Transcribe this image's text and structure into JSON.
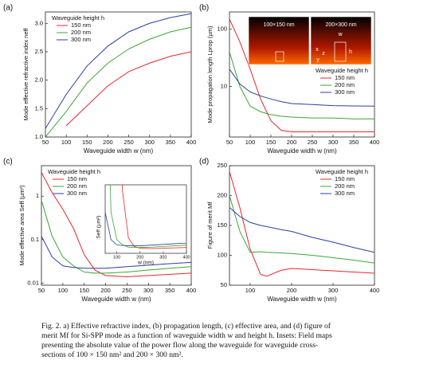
{
  "chart_data": [
    {
      "type": "line",
      "label": "(a)",
      "xlabel": "Waveguide width w (nm)",
      "ylabel": "Mode effective refractive index neff",
      "x": [
        50,
        100,
        150,
        200,
        250,
        300,
        350,
        400
      ],
      "series": [
        {
          "name": "150 nm",
          "color": "#e8262a",
          "values": [
            null,
            1.2,
            1.55,
            1.9,
            2.15,
            2.3,
            2.42,
            2.5
          ]
        },
        {
          "name": "200 nm",
          "color": "#3aa635",
          "values": [
            1.0,
            1.45,
            1.95,
            2.3,
            2.55,
            2.72,
            2.85,
            2.93
          ]
        },
        {
          "name": "300 nm",
          "color": "#2b3f9c",
          "values": [
            1.15,
            1.75,
            2.25,
            2.6,
            2.85,
            3.0,
            3.1,
            3.17
          ]
        }
      ],
      "legend_title": "Waveguide height h",
      "legend": "upper left",
      "xlim": [
        50,
        400
      ],
      "xticks": [
        50,
        100,
        150,
        200,
        250,
        300,
        350,
        400
      ],
      "ylim": [
        1.0,
        3.2
      ],
      "yticks": [
        {
          "value": 1,
          "label": "1.0"
        },
        {
          "value": 1.5,
          "label": "1.5"
        },
        {
          "value": 2,
          "label": "2.0"
        },
        {
          "value": 2.5,
          "label": "2.5"
        },
        {
          "value": 3,
          "label": "3.0"
        }
      ]
    },
    {
      "type": "line",
      "label": "(b)",
      "xlabel": "Waveguide width w (nm)",
      "ylabel": "Mode propagation length Lprop (µm)",
      "x": [
        50,
        75,
        100,
        125,
        150,
        175,
        200,
        250,
        300,
        350,
        400
      ],
      "series": [
        {
          "name": "150 nm",
          "color": "#e8262a",
          "values": [
            150,
            60,
            20,
            6,
            2.5,
            1.7,
            1.6,
            1.6,
            1.6,
            1.6,
            1.6
          ]
        },
        {
          "name": "200 nm",
          "color": "#3aa635",
          "values": [
            40,
            10,
            4.5,
            3.6,
            3.2,
            3.0,
            2.9,
            2.8,
            2.8,
            2.7,
            2.7
          ]
        },
        {
          "name": "300 nm",
          "color": "#2b3f9c",
          "values": [
            20,
            11,
            8,
            6.8,
            6,
            5.4,
            5,
            4.8,
            4.6,
            4.55,
            4.5
          ]
        }
      ],
      "legend_title": "Waveguide height h",
      "legend": "right",
      "annotations": [
        "100×150 nm",
        "200×300 nm",
        "w",
        "h",
        "x",
        "y",
        "z"
      ],
      "log_y": true,
      "xlim": [
        50,
        400
      ],
      "xticks": [
        50,
        100,
        150,
        200,
        250,
        300,
        350,
        400
      ],
      "ylim": [
        1.3,
        200
      ],
      "yticks": [
        10,
        100
      ]
    },
    {
      "type": "line",
      "label": "(c)",
      "xlabel": "Waveguide width w (nm)",
      "ylabel": "Mode effective area Seff (µm²)",
      "x": [
        50,
        75,
        100,
        125,
        150,
        175,
        200,
        250,
        300,
        350,
        400
      ],
      "series": [
        {
          "name": "150 nm",
          "color": "#e8262a",
          "values": [
            3.5,
            1.2,
            0.5,
            0.18,
            0.045,
            0.02,
            0.015,
            0.014,
            0.015,
            0.016,
            0.017
          ]
        },
        {
          "name": "200 nm",
          "color": "#3aa635",
          "values": [
            0.8,
            0.12,
            0.04,
            0.025,
            0.018,
            0.017,
            0.017,
            0.018,
            0.02,
            0.022,
            0.024
          ]
        },
        {
          "name": "300 nm",
          "color": "#2b3f9c",
          "values": [
            0.12,
            0.04,
            0.025,
            0.023,
            0.022,
            0.022,
            0.022,
            0.024,
            0.026,
            0.028,
            0.03
          ]
        }
      ],
      "legend_title": "Waveguide height h",
      "legend": "upper left",
      "log_y": true,
      "xlim": [
        50,
        400
      ],
      "xticks": [
        50,
        100,
        150,
        200,
        250,
        300,
        350,
        400
      ],
      "ylim": [
        0.009,
        5
      ],
      "yticks": [
        0.01,
        0.1,
        1
      ],
      "inset": {
        "xlabel": "w (nm)",
        "ylabel": "Seff (µm²)",
        "xlim": [
          50,
          400
        ],
        "xticks": [
          100,
          200,
          300,
          400
        ],
        "ylim": [
          0,
          0.2
        ]
      }
    },
    {
      "type": "line",
      "label": "(d)",
      "xlabel": "Waveguide width w (nm)",
      "ylabel": "Figure of merit Mf",
      "x": [
        50,
        75,
        100,
        125,
        140,
        175,
        200,
        250,
        300,
        350,
        400
      ],
      "series": [
        {
          "name": "150 nm",
          "color": "#e8262a",
          "values": [
            240,
            180,
            110,
            68,
            65,
            75,
            78,
            76,
            74,
            72,
            70
          ]
        },
        {
          "name": "200 nm",
          "color": "#3aa635",
          "values": [
            200,
            140,
            105,
            106,
            105,
            104,
            103,
            100,
            96,
            92,
            87
          ]
        },
        {
          "name": "300 nm",
          "color": "#2b3f9c",
          "values": [
            180,
            165,
            155,
            150,
            148,
            143,
            140,
            130,
            122,
            113,
            105
          ]
        }
      ],
      "legend_title": "Waveguide height h",
      "legend": "upper right",
      "xlim": [
        50,
        400
      ],
      "xticks": [
        100,
        200,
        300,
        400
      ],
      "ylim": [
        50,
        250
      ],
      "yticks": [
        50,
        100,
        150,
        200,
        250
      ]
    }
  ],
  "caption": [
    "Fig. 2. a) Effective refractive index, (b) propagation length, (c) effective area, and (d) figure of",
    "merit Mf for Si-SPP mode as a function of waveguide width w and height h. Insets: Field maps",
    "presenting the absolute value of the power flow along the waveguide for waveguide cross-",
    "sections of 100 × 150 nm² and 200 × 300 nm²."
  ]
}
